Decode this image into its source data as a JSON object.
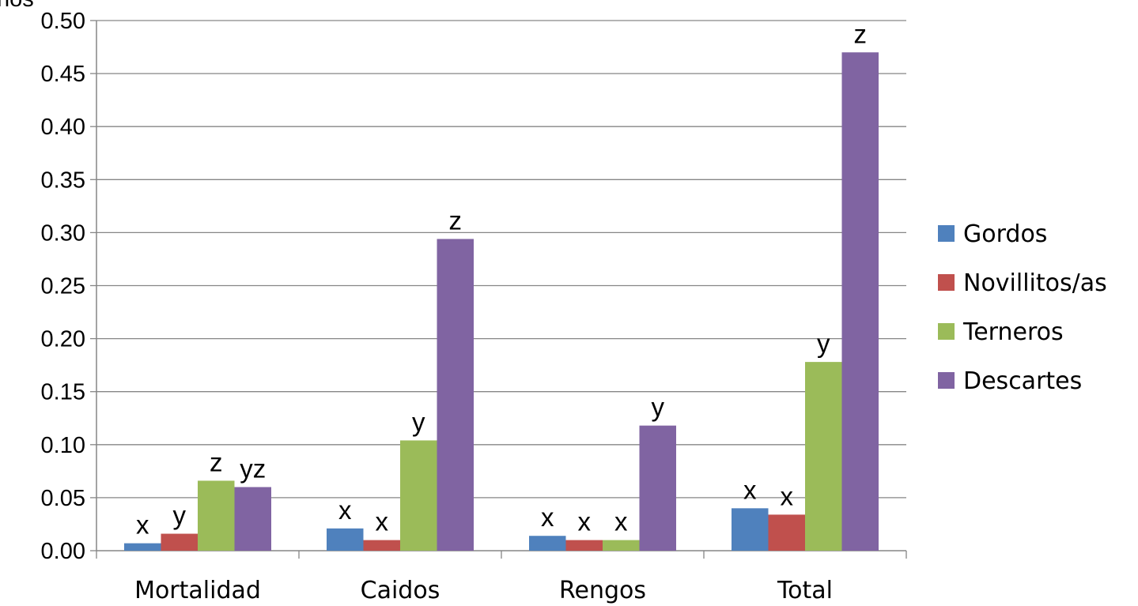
{
  "chart_data": {
    "type": "bar",
    "categories": [
      "Mortalidad",
      "Caidos",
      "Rengos",
      "Total"
    ],
    "series": [
      {
        "name": "Gordos",
        "color": "#4F81BD",
        "values": [
          0.007,
          0.021,
          0.014,
          0.04
        ],
        "letters": [
          "x",
          "x",
          "x",
          "x"
        ]
      },
      {
        "name": "Novillitos/as",
        "color": "#C0504D",
        "values": [
          0.016,
          0.01,
          0.01,
          0.034
        ],
        "letters": [
          "y",
          "x",
          "x",
          "x"
        ]
      },
      {
        "name": "Terneros",
        "color": "#9BBB59",
        "values": [
          0.066,
          0.104,
          0.01,
          0.178
        ],
        "letters": [
          "z",
          "y",
          "x",
          "y"
        ]
      },
      {
        "name": "Descartes",
        "color": "#8064A2",
        "values": [
          0.06,
          0.294,
          0.118,
          0.47
        ],
        "letters": [
          "yz",
          "z",
          "y",
          "z"
        ]
      }
    ],
    "ylim": [
      0,
      0.5
    ],
    "yticks": [
      "0.00",
      "0.05",
      "0.10",
      "0.15",
      "0.20",
      "0.25",
      "0.30",
      "0.35",
      "0.40",
      "0.45",
      "0.50"
    ],
    "grid": true,
    "legend": "right",
    "clipped_ylabel_fragment": "nos"
  }
}
